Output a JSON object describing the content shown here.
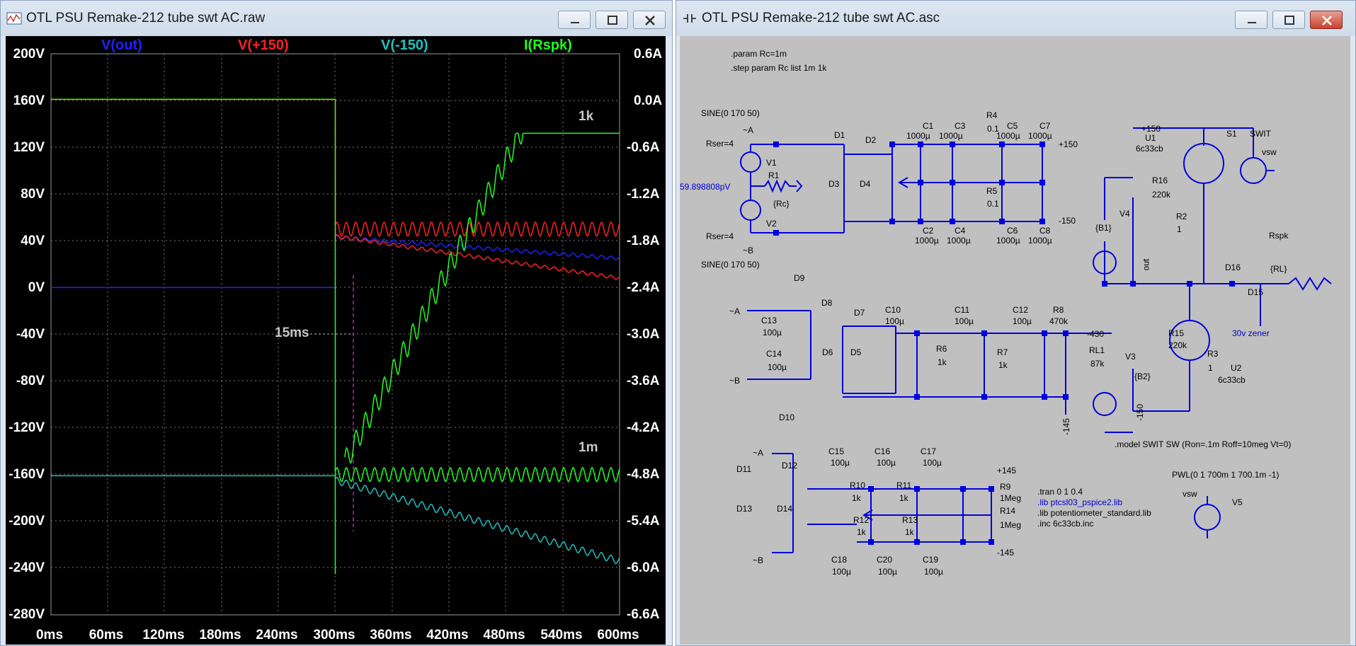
{
  "waveform_window": {
    "title": "OTL PSU Remake-212 tube swt AC.raw",
    "traces": [
      {
        "label": "V(out)",
        "color": "#2020ff"
      },
      {
        "label": "V(+150)",
        "color": "#ff2020"
      },
      {
        "label": "V(-150)",
        "color": "#20c0c0"
      },
      {
        "label": "I(Rspk)",
        "color": "#20ff20"
      }
    ],
    "left_axis_ticks": [
      "200V",
      "160V",
      "120V",
      "80V",
      "40V",
      "0V",
      "-40V",
      "-80V",
      "-120V",
      "-160V",
      "-200V",
      "-240V",
      "-280V"
    ],
    "right_axis_ticks": [
      "0.6A",
      "0.0A",
      "-0.6A",
      "-1.2A",
      "-1.8A",
      "-2.4A",
      "-3.0A",
      "-3.6A",
      "-4.2A",
      "-4.8A",
      "-5.4A",
      "-6.0A",
      "-6.6A"
    ],
    "x_axis_ticks": [
      "0ms",
      "60ms",
      "120ms",
      "180ms",
      "240ms",
      "300ms",
      "360ms",
      "420ms",
      "480ms",
      "540ms",
      "600ms"
    ],
    "annotations": {
      "top_curve": "1k",
      "bottom_curve": "1m",
      "cursor": "15ms"
    }
  },
  "schematic_window": {
    "title": "OTL PSU Remake-212 tube swt AC.asc",
    "directives": {
      "param": ".param Rc=1m",
      "step": ".step param Rc list 1m 1k",
      "tran": ".tran 0 1 0.4",
      "lib1": ".lib ptcsl03_pspice2.lib",
      "lib2": ".lib potentiometer_standard.lib",
      "inc": ".inc 6c33cb.inc",
      "model": ".model SWIT SW (Ron=.1m Roff=10meg Vt=0)",
      "pwl": "PWL(0 1 700m 1 700.1m -1)"
    },
    "labels": {
      "sine1": "SINE(0 170 50)",
      "sine2": "SINE(0 170 50)",
      "rser1": "Rser=4",
      "rser2": "Rser=4",
      "v1": "V1",
      "v2": "V2",
      "r1": "R1",
      "rc": "{Rc}",
      "probe_val": "59.898808pV",
      "d1": "D1",
      "d2": "D2",
      "d3": "D3",
      "d4": "D4",
      "c1": "C1",
      "c1v": "1000µ",
      "c3": "C3",
      "c3v": "1000µ",
      "r4": "R4",
      "r4v": "0.1",
      "c5": "C5",
      "c5v": "1000µ",
      "c7": "C7",
      "c7v": "1000µ",
      "r5": "R5",
      "r5v": "0.1",
      "c2": "C2",
      "c2v": "1000µ",
      "c4": "C4",
      "c4v": "1000µ",
      "c6": "C6",
      "c6v": "1000µ",
      "c8": "C8",
      "c8v": "1000µ",
      "p150": "+150",
      "m150": "-150",
      "u1": "U1",
      "u1v": "6c33cb",
      "s1": "S1",
      "swit": "SWIT",
      "vsw": "vsw",
      "r16": "R16",
      "r16v": "220k",
      "v4": "V4",
      "b1": "{B1}",
      "r2": "R2",
      "r2v": "1",
      "out": "out",
      "rspk": "Rspk",
      "rl": "{RL}",
      "d16": "D16",
      "d15": "D15",
      "zener": "30v zener",
      "r15": "R15",
      "r15v": "220k",
      "v3": "V3",
      "b2": "{B2}",
      "r3": "R3",
      "r3v": "1",
      "u2": "U2",
      "u2v": "6c33cb",
      "m150b": "-150",
      "d9": "D9",
      "d8": "D8",
      "d7": "D7",
      "d6": "D6",
      "d5": "D5",
      "d10": "D10",
      "c13": "C13",
      "c13v": "100µ",
      "c14": "C14",
      "c14v": "100µ",
      "c10": "C10",
      "c10v": "100µ",
      "c11": "C11",
      "c11v": "100µ",
      "c12": "C12",
      "c12v": "100µ",
      "r6": "R6",
      "r6v": "1k",
      "r7": "R7",
      "r7v": "1k",
      "r8": "R8",
      "r8v": "470k",
      "rl1": "RL1",
      "rl1v": "87k",
      "m430": "-430",
      "m145": "-145",
      "d11": "D11",
      "d12": "D12",
      "d13": "D13",
      "d14": "D14",
      "c15": "C15",
      "c15v": "100µ",
      "c16": "C16",
      "c16v": "100µ",
      "c17": "C17",
      "c17v": "100µ",
      "r10": "R10",
      "r10v": "1k",
      "r11": "R11",
      "r11v": "1k",
      "r12": "R12",
      "r12v": "1k",
      "r13": "R13",
      "r13v": "1k",
      "c18": "C18",
      "c18v": "100µ",
      "c20": "C20",
      "c20v": "100µ",
      "c19": "C19",
      "c19v": "100µ",
      "r9": "R9",
      "r9v": "1Meg",
      "r14": "R14",
      "r14v": "1Meg",
      "p145": "+145",
      "m145b": "-145",
      "v5": "V5",
      "pa": "~A",
      "pb": "~B",
      "pa2": "~A",
      "pb2": "~B",
      "pa3": "~A",
      "pb3": "~B"
    }
  }
}
